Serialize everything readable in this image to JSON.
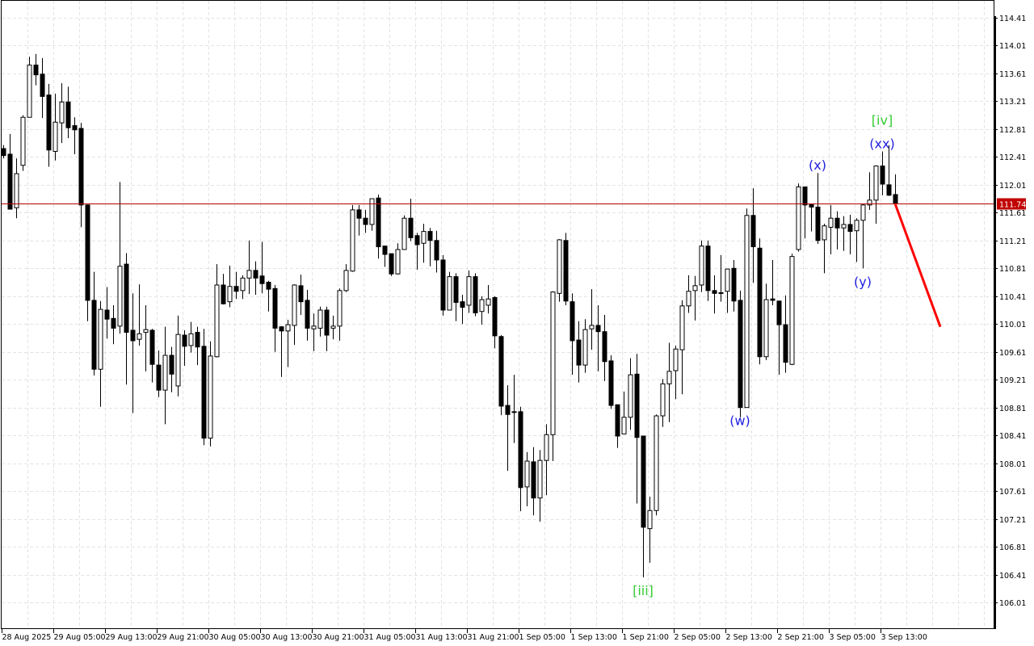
{
  "chart_data": {
    "type": "candlestick",
    "timeframe": "H1",
    "x_start": "2025-08-28 21:00",
    "bar_interval_hours": 1,
    "grid": true,
    "ylim": [
      106.01,
      114.41
    ],
    "y_ticks": [
      "114.41",
      "114.01",
      "113.61",
      "113.21",
      "112.81",
      "112.41",
      "112.01",
      "111.61",
      "111.21",
      "110.81",
      "110.41",
      "110.01",
      "109.61",
      "109.21",
      "108.81",
      "108.41",
      "108.01",
      "107.61",
      "107.21",
      "106.81",
      "106.41",
      "106.01"
    ],
    "x_ticks": [
      "28 Aug 2025",
      "29 Aug 05:00",
      "29 Aug 13:00",
      "29 Aug 21:00",
      "30 Aug 05:00",
      "30 Aug 13:00",
      "30 Aug 21:00",
      "31 Aug 05:00",
      "31 Aug 13:00",
      "31 Aug 21:00",
      "1 Sep 05:00",
      "1 Sep 13:00",
      "1 Sep 21:00",
      "2 Sep 05:00",
      "2 Sep 13:00",
      "2 Sep 21:00",
      "3 Sep 05:00",
      "3 Sep 13:00"
    ],
    "current_price": "111.74",
    "colors": {
      "bull_body": "#ffffff",
      "bear_body": "#000000",
      "outline": "#000000",
      "price_line": "#b00000",
      "price_label_bg": "#c00000",
      "forecast": "#ff0000",
      "wave_major": "#33cc33",
      "wave_minor": "#2020e0",
      "grid": "#e3e3e3"
    },
    "ohlc": [
      [
        112.53,
        112.58,
        112.39,
        112.43
      ],
      [
        112.45,
        112.74,
        111.66,
        111.66
      ],
      [
        111.68,
        112.39,
        111.53,
        112.17
      ],
      [
        112.29,
        113.01,
        112.21,
        112.98
      ],
      [
        112.98,
        113.85,
        112.98,
        113.73
      ],
      [
        113.73,
        113.89,
        113.44,
        113.59
      ],
      [
        113.6,
        113.83,
        112.97,
        113.28
      ],
      [
        113.3,
        113.46,
        112.27,
        112.51
      ],
      [
        112.49,
        113.32,
        112.36,
        112.91
      ],
      [
        112.9,
        113.47,
        112.61,
        113.2
      ],
      [
        113.2,
        113.42,
        112.68,
        112.83
      ],
      [
        112.86,
        112.98,
        112.45,
        112.8
      ],
      [
        112.82,
        112.9,
        111.4,
        111.72
      ],
      [
        111.72,
        111.72,
        110.05,
        110.35
      ],
      [
        110.35,
        110.76,
        109.27,
        109.36
      ],
      [
        109.36,
        110.34,
        108.82,
        110.22
      ],
      [
        110.21,
        110.54,
        109.8,
        110.08
      ],
      [
        110.09,
        110.28,
        109.72,
        109.95
      ],
      [
        109.98,
        112.05,
        109.87,
        110.84
      ],
      [
        110.87,
        111.03,
        109.14,
        109.89
      ],
      [
        109.92,
        110.45,
        108.73,
        109.77
      ],
      [
        109.79,
        110.58,
        109.7,
        109.87
      ],
      [
        109.89,
        110.28,
        109.33,
        109.93
      ],
      [
        109.92,
        109.94,
        109.17,
        109.43
      ],
      [
        109.42,
        109.63,
        108.96,
        109.06
      ],
      [
        109.06,
        109.97,
        108.57,
        109.56
      ],
      [
        109.56,
        109.68,
        109.03,
        109.29
      ],
      [
        109.12,
        110.13,
        108.97,
        109.86
      ],
      [
        109.85,
        109.92,
        109.41,
        109.69
      ],
      [
        109.7,
        110.04,
        109.6,
        109.87
      ],
      [
        109.89,
        109.97,
        109.42,
        109.68
      ],
      [
        109.69,
        109.94,
        108.27,
        108.37
      ],
      [
        108.37,
        109.76,
        108.25,
        109.55
      ],
      [
        109.54,
        110.87,
        109.53,
        110.57
      ],
      [
        110.57,
        110.73,
        110.29,
        110.3
      ],
      [
        110.33,
        110.85,
        110.25,
        110.55
      ],
      [
        110.55,
        110.76,
        110.37,
        110.48
      ],
      [
        110.49,
        110.71,
        110.37,
        110.67
      ],
      [
        110.67,
        111.21,
        110.44,
        110.78
      ],
      [
        110.78,
        110.91,
        110.43,
        110.67
      ],
      [
        110.7,
        111.19,
        110.45,
        110.59
      ],
      [
        110.61,
        110.63,
        110.19,
        110.51
      ],
      [
        110.52,
        110.57,
        109.61,
        109.95
      ],
      [
        109.97,
        109.98,
        109.25,
        109.91
      ],
      [
        109.91,
        110.07,
        109.39,
        110.0
      ],
      [
        109.99,
        110.58,
        109.71,
        110.57
      ],
      [
        110.56,
        110.72,
        110.14,
        110.33
      ],
      [
        110.35,
        110.5,
        109.77,
        109.95
      ],
      [
        109.94,
        110.16,
        109.62,
        109.98
      ],
      [
        109.95,
        110.26,
        109.83,
        110.21
      ],
      [
        110.21,
        110.26,
        109.62,
        109.85
      ],
      [
        109.95,
        110.13,
        109.79,
        109.98
      ],
      [
        109.98,
        110.52,
        109.77,
        110.49
      ],
      [
        110.49,
        110.87,
        110.47,
        110.78
      ],
      [
        110.77,
        111.72,
        110.76,
        111.65
      ],
      [
        111.65,
        111.72,
        111.28,
        111.53
      ],
      [
        111.53,
        111.65,
        111.32,
        111.44
      ],
      [
        111.44,
        111.81,
        111.35,
        111.81
      ],
      [
        111.82,
        111.87,
        110.95,
        111.12
      ],
      [
        111.13,
        111.13,
        110.83,
        111.01
      ],
      [
        111.02,
        111.02,
        110.7,
        110.73
      ],
      [
        110.73,
        111.17,
        110.72,
        111.08
      ],
      [
        111.08,
        111.57,
        111.08,
        111.53
      ],
      [
        111.53,
        111.81,
        111.2,
        111.25
      ],
      [
        111.28,
        111.32,
        110.79,
        111.15
      ],
      [
        111.17,
        111.45,
        110.89,
        111.34
      ],
      [
        111.34,
        111.39,
        110.84,
        111.21
      ],
      [
        111.21,
        111.35,
        110.75,
        110.93
      ],
      [
        110.93,
        111.0,
        110.13,
        110.21
      ],
      [
        110.21,
        110.76,
        110.21,
        110.69
      ],
      [
        110.69,
        110.74,
        110.05,
        110.32
      ],
      [
        110.33,
        110.43,
        110.01,
        110.25
      ],
      [
        110.28,
        110.78,
        110.17,
        110.69
      ],
      [
        110.69,
        110.74,
        110.12,
        110.17
      ],
      [
        110.19,
        110.41,
        110.0,
        110.36
      ],
      [
        110.28,
        110.57,
        110.16,
        110.37
      ],
      [
        110.39,
        110.41,
        109.66,
        109.84
      ],
      [
        109.83,
        109.85,
        108.7,
        108.83
      ],
      [
        108.84,
        109.13,
        107.9,
        108.71
      ],
      [
        108.75,
        109.28,
        108.3,
        108.75
      ],
      [
        108.75,
        108.82,
        107.32,
        107.66
      ],
      [
        107.67,
        108.17,
        107.39,
        108.04
      ],
      [
        108.03,
        108.24,
        107.26,
        107.51
      ],
      [
        107.51,
        108.2,
        107.17,
        108.05
      ],
      [
        108.05,
        108.57,
        107.55,
        108.42
      ],
      [
        108.42,
        110.48,
        108.04,
        110.47
      ],
      [
        110.45,
        111.23,
        110.33,
        111.22
      ],
      [
        111.21,
        111.32,
        110.28,
        110.34
      ],
      [
        110.33,
        110.45,
        109.28,
        109.77
      ],
      [
        109.78,
        110.05,
        109.17,
        109.42
      ],
      [
        109.42,
        110.08,
        109.31,
        109.93
      ],
      [
        109.94,
        110.51,
        109.64,
        109.99
      ],
      [
        109.99,
        110.28,
        109.33,
        109.9
      ],
      [
        109.9,
        110.14,
        109.19,
        109.47
      ],
      [
        109.48,
        109.56,
        108.79,
        108.84
      ],
      [
        108.85,
        108.85,
        108.23,
        108.4
      ],
      [
        108.43,
        109.04,
        108.43,
        108.67
      ],
      [
        108.67,
        109.52,
        108.49,
        109.28
      ],
      [
        109.29,
        109.58,
        107.43,
        108.38
      ],
      [
        108.4,
        108.4,
        106.37,
        107.09
      ],
      [
        107.07,
        107.53,
        106.58,
        107.33
      ],
      [
        107.33,
        108.71,
        107.26,
        108.69
      ],
      [
        108.69,
        109.22,
        108.53,
        109.15
      ],
      [
        109.15,
        109.74,
        108.6,
        109.33
      ],
      [
        109.34,
        109.7,
        108.93,
        109.65
      ],
      [
        109.64,
        110.35,
        109.0,
        110.27
      ],
      [
        110.27,
        110.71,
        110.17,
        110.48
      ],
      [
        110.49,
        110.7,
        110.06,
        110.56
      ],
      [
        110.57,
        111.21,
        110.47,
        111.13
      ],
      [
        111.13,
        111.21,
        110.34,
        110.49
      ],
      [
        110.49,
        110.71,
        110.16,
        110.45
      ],
      [
        110.46,
        111.0,
        110.33,
        110.46
      ],
      [
        110.48,
        110.8,
        110.17,
        110.8
      ],
      [
        110.81,
        110.93,
        110.19,
        110.34
      ],
      [
        110.35,
        110.49,
        108.67,
        108.81
      ],
      [
        108.81,
        111.67,
        108.81,
        111.57
      ],
      [
        111.57,
        111.96,
        110.6,
        111.12
      ],
      [
        111.1,
        111.24,
        109.43,
        109.54
      ],
      [
        109.54,
        110.59,
        109.49,
        110.36
      ],
      [
        110.37,
        110.93,
        110.28,
        110.35
      ],
      [
        110.34,
        110.34,
        109.28,
        110.0
      ],
      [
        110.0,
        110.42,
        109.31,
        109.46
      ],
      [
        109.43,
        111.02,
        109.42,
        110.98
      ],
      [
        111.08,
        112.03,
        111.05,
        111.98
      ],
      [
        111.98,
        111.98,
        111.24,
        111.72
      ],
      [
        111.73,
        111.73,
        111.34,
        111.69
      ],
      [
        111.69,
        112.18,
        111.16,
        111.21
      ],
      [
        111.22,
        111.45,
        110.74,
        111.42
      ],
      [
        111.4,
        111.72,
        111.01,
        111.53
      ],
      [
        111.53,
        111.63,
        111.08,
        111.39
      ],
      [
        111.39,
        111.56,
        111.06,
        111.44
      ],
      [
        111.44,
        111.58,
        111.01,
        111.34
      ],
      [
        111.35,
        111.53,
        110.9,
        111.5
      ],
      [
        111.5,
        111.74,
        110.81,
        111.72
      ],
      [
        111.72,
        112.19,
        111.65,
        111.79
      ],
      [
        111.79,
        112.29,
        111.45,
        112.28
      ],
      [
        112.28,
        112.49,
        111.86,
        112.02
      ],
      [
        112.01,
        112.58,
        111.85,
        111.86
      ],
      [
        111.87,
        112.16,
        111.74,
        111.74
      ]
    ],
    "forecast_line": {
      "from": {
        "bar": 138,
        "price": 111.74
      },
      "to": {
        "bar": 145,
        "price": 109.97
      }
    },
    "wave_labels": [
      {
        "text": "[iii]",
        "bar": 99,
        "price": 106.37,
        "degree": "major",
        "position": "below"
      },
      {
        "text": "[iv]",
        "bar": 136,
        "price": 112.49,
        "degree": "major",
        "position": "above-far"
      },
      {
        "text": "(w)",
        "bar": 114,
        "price": 108.81,
        "degree": "minor",
        "position": "below"
      },
      {
        "text": "(x)",
        "bar": 126,
        "price": 112.18,
        "degree": "minor",
        "position": "above"
      },
      {
        "text": "(xx)",
        "bar": 136,
        "price": 112.49,
        "degree": "minor",
        "position": "above"
      },
      {
        "text": "(y)",
        "bar": 133,
        "price": 110.81,
        "degree": "minor",
        "position": "below"
      }
    ]
  }
}
